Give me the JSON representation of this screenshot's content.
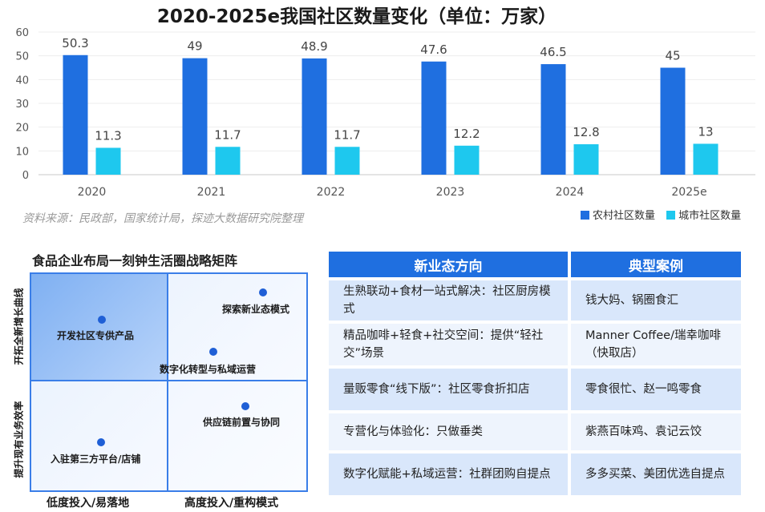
{
  "chart_data": {
    "type": "bar",
    "title": "2020-2025e我国社区数量变化（单位：万家）",
    "categories": [
      "2020",
      "2021",
      "2022",
      "2023",
      "2024",
      "2025e"
    ],
    "ylim": [
      0,
      60
    ],
    "yticks": [
      0,
      10,
      20,
      30,
      40,
      50,
      60
    ],
    "grid": true,
    "legend_position": "bottom-right",
    "series": [
      {
        "name": "农村社区数量",
        "values": [
          50.3,
          49,
          48.9,
          47.6,
          46.5,
          45
        ],
        "labels": [
          "50.3",
          "49",
          "48.9",
          "47.6",
          "46.5",
          "45"
        ],
        "color": "#1f6fe0"
      },
      {
        "name": "城市社区数量",
        "values": [
          11.3,
          11.7,
          11.7,
          12.2,
          12.8,
          13
        ],
        "labels": [
          "11.3",
          "11.7",
          "11.7",
          "12.2",
          "12.8",
          "13"
        ],
        "color": "#1ec8ee"
      }
    ],
    "source_note": "资料来源：民政部，国家统计局，探迹大数据研究院整理"
  },
  "matrix": {
    "title": "食品企业布局一刻钟生活圈战略矩阵",
    "y_top_label": "开拓全新增长曲线",
    "y_bottom_label": "提升现有业务效率",
    "x_left_label": "低度投入/易落地",
    "x_right_label": "高度投入/重构模式",
    "items": {
      "tl": "开发社区专供产品",
      "tr1": "探索新业态模式",
      "tr2": "数字化转型与私域运营",
      "br": "供应链前置与协同",
      "bl": "入驻第三方平台/店铺"
    }
  },
  "table": {
    "headers": [
      "新业态方向",
      "典型案例"
    ],
    "rows": [
      {
        "direction": "生熟联动+食材一站式解决：社区厨房模式",
        "cases": "钱大妈、锅圈食汇"
      },
      {
        "direction": "精品咖啡+轻食+社交空间：提供“轻社交”场景",
        "cases": "Manner Coffee/瑞幸咖啡（快取店）"
      },
      {
        "direction": "量贩零食“线下版”：社区零食折扣店",
        "cases": "零食很忙、赵一鸣零食"
      },
      {
        "direction": "专营化与体验化：只做垂类",
        "cases": "紫燕百味鸡、袁记云饺"
      },
      {
        "direction": "数字化赋能+私域运营：社群团购自提点",
        "cases": "多多买菜、美团优选自提点"
      }
    ]
  }
}
